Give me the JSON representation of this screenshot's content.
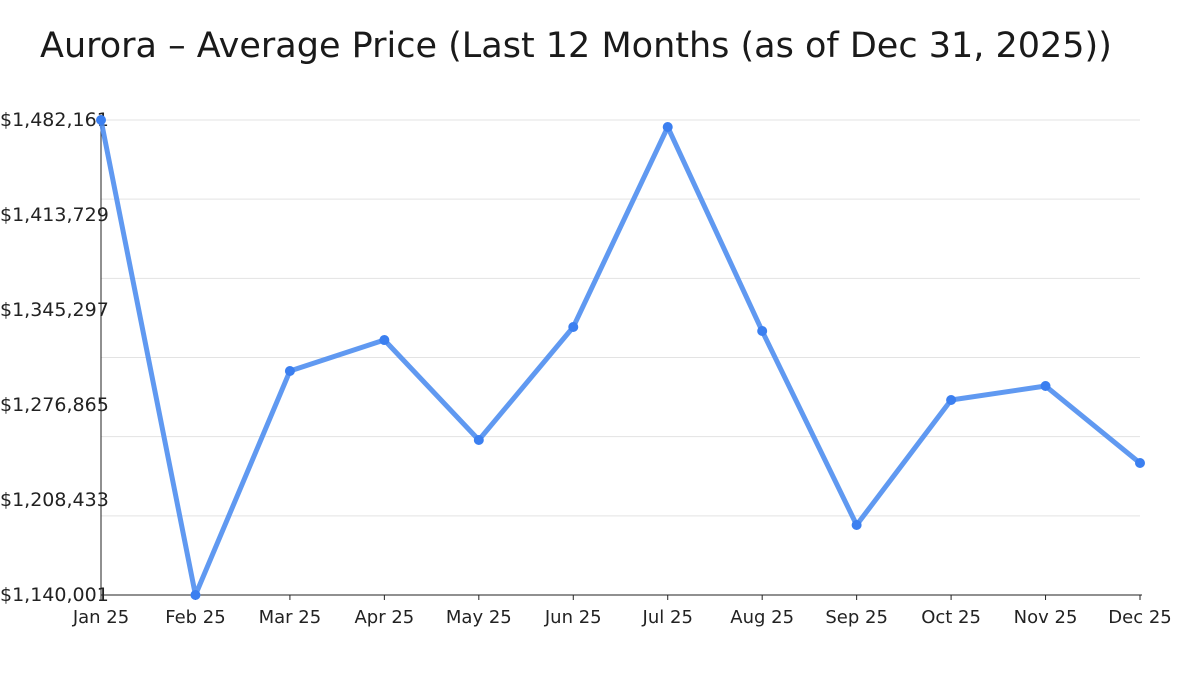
{
  "chart_data": {
    "type": "line",
    "title": "Aurora – Average Price (Last 12 Months (as of Dec 31, 2025))",
    "xlabel": "",
    "ylabel": "",
    "categories": [
      "Jan 25",
      "Feb 25",
      "Mar 25",
      "Apr 25",
      "May 25",
      "Jun 25",
      "Jul 25",
      "Aug 25",
      "Sep 25",
      "Oct 25",
      "Nov 25",
      "Dec 25"
    ],
    "series": [
      {
        "name": "Average Price",
        "color": "#4f8ef0",
        "values": [
          1482161,
          1140001,
          1301348,
          1323678,
          1251648,
          1333041,
          1477101,
          1330160,
          1190422,
          1280460,
          1290544,
          1235081
        ]
      }
    ],
    "yticks": [
      "$1,140,001",
      "$1,208,433",
      "$1,276,865",
      "$1,345,297",
      "$1,413,729",
      "$1,482,161"
    ],
    "ylim": [
      1140001,
      1482161
    ],
    "grid": true,
    "gridline_count": 6
  }
}
